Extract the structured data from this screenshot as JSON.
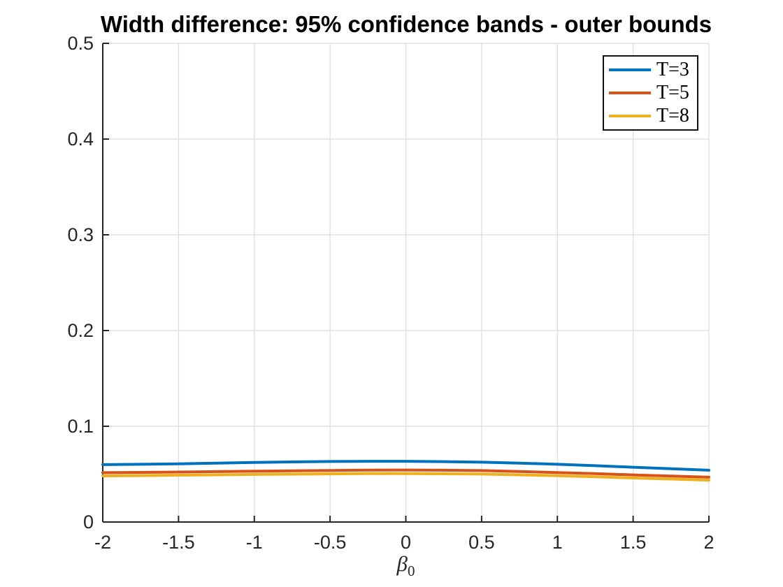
{
  "figure": {
    "background": "#ffffff",
    "axis_color": "#262626",
    "grid_color": "#e0e0e0",
    "tick_label_color": "#262626"
  },
  "chart_data": {
    "type": "line",
    "title": "Width difference: 95% confidence bands - outer bounds",
    "xlabel_main": "β",
    "xlabel_sub": "0",
    "ylabel": "",
    "xlim": [
      -2,
      2
    ],
    "ylim": [
      0,
      0.5
    ],
    "xticks": [
      -2,
      -1.5,
      -1,
      -0.5,
      0,
      0.5,
      1,
      1.5,
      2
    ],
    "xtick_labels": [
      "-2",
      "-1.5",
      "-1",
      "-0.5",
      "0",
      "0.5",
      "1",
      "1.5",
      "2"
    ],
    "yticks": [
      0,
      0.1,
      0.2,
      0.3,
      0.4,
      0.5
    ],
    "ytick_labels": [
      "0",
      "0.1",
      "0.2",
      "0.3",
      "0.4",
      "0.5"
    ],
    "grid": true,
    "legend_position": "top-right",
    "x": [
      -2,
      -1.75,
      -1.5,
      -1.25,
      -1,
      -0.75,
      -0.5,
      -0.25,
      0,
      0.25,
      0.5,
      0.75,
      1,
      1.25,
      1.5,
      1.75,
      2
    ],
    "series": [
      {
        "name": "T=3",
        "color": "#0072BD",
        "values": [
          0.0599,
          0.0603,
          0.0608,
          0.0615,
          0.0622,
          0.0628,
          0.0632,
          0.0634,
          0.0634,
          0.0631,
          0.0625,
          0.0615,
          0.0603,
          0.0588,
          0.0572,
          0.0556,
          0.0541
        ]
      },
      {
        "name": "T=5",
        "color": "#D95319",
        "values": [
          0.0515,
          0.0518,
          0.0522,
          0.0526,
          0.0531,
          0.0535,
          0.0539,
          0.0542,
          0.0543,
          0.0541,
          0.0537,
          0.0528,
          0.0517,
          0.0505,
          0.0492,
          0.048,
          0.0468
        ]
      },
      {
        "name": "T=8",
        "color": "#EDB120",
        "values": [
          0.0482,
          0.0485,
          0.0489,
          0.0493,
          0.0497,
          0.05,
          0.0503,
          0.0505,
          0.0506,
          0.0504,
          0.0501,
          0.0493,
          0.0483,
          0.0472,
          0.046,
          0.0449,
          0.0437
        ]
      }
    ]
  }
}
